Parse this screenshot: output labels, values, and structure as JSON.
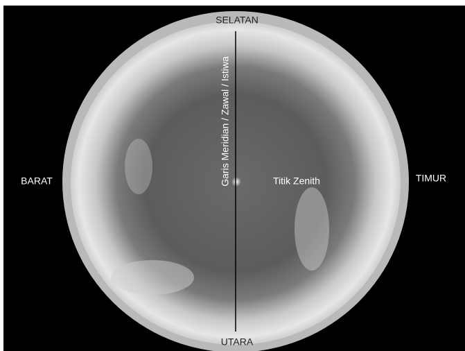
{
  "labels": {
    "top": "SELATAN",
    "bottom": "UTARA",
    "left": "BARAT",
    "right": "TIMUR",
    "meridian": "Garis Meridian / Zawal / Istiwa",
    "zenith": "Titik Zenith"
  }
}
